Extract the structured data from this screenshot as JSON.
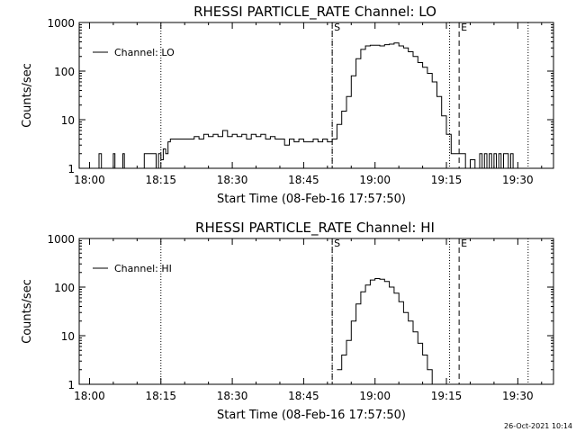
{
  "chart_data": [
    {
      "type": "line",
      "title": "RHESSI PARTICLE_RATE Channel: LO",
      "xlabel": "Start Time (08-Feb-16 17:57:50)",
      "ylabel": "Counts/sec",
      "yscale": "log",
      "xlim": [
        "17:57:50",
        "19:37:30"
      ],
      "ylim": [
        1,
        1000
      ],
      "x_ticks": [
        "18:00",
        "18:15",
        "18:30",
        "18:45",
        "19:00",
        "19:15",
        "19:30"
      ],
      "y_ticks": [
        "1",
        "10",
        "100",
        "1000"
      ],
      "legend": {
        "label": "Channel: LO",
        "position": "top-left"
      },
      "markers": [
        {
          "label": "S",
          "time": "18:51:00",
          "style": "dashed"
        },
        {
          "label": "E",
          "time": "19:17:40",
          "style": "dashed"
        }
      ],
      "dotted_lines": [
        "18:15:00",
        "18:51:00",
        "19:15:40",
        "19:32:10"
      ],
      "grid": false,
      "series": [
        {
          "name": "Channel: LO",
          "points": [
            [
              "18:00:30",
              1
            ],
            [
              "18:01:30",
              1
            ],
            [
              "18:02:00",
              2
            ],
            [
              "18:02:30",
              1
            ],
            [
              "18:04:40",
              1
            ],
            [
              "18:05:00",
              2
            ],
            [
              "18:05:20",
              1
            ],
            [
              "18:06:40",
              1
            ],
            [
              "18:07:00",
              2
            ],
            [
              "18:07:20",
              1
            ],
            [
              "18:11:00",
              1
            ],
            [
              "18:11:30",
              2
            ],
            [
              "18:13:30",
              2
            ],
            [
              "18:14:00",
              1
            ],
            [
              "18:14:30",
              2
            ],
            [
              "18:15:00",
              1.5
            ],
            [
              "18:15:30",
              2.5
            ],
            [
              "18:16:00",
              2
            ],
            [
              "18:16:30",
              3.5
            ],
            [
              "18:17:00",
              4
            ],
            [
              "18:19:00",
              4
            ],
            [
              "18:21:00",
              4
            ],
            [
              "18:22:00",
              4.5
            ],
            [
              "18:23:00",
              4
            ],
            [
              "18:24:00",
              5
            ],
            [
              "18:25:00",
              4.5
            ],
            [
              "18:26:00",
              5
            ],
            [
              "18:27:00",
              4.5
            ],
            [
              "18:28:00",
              6
            ],
            [
              "18:29:00",
              4.5
            ],
            [
              "18:30:00",
              5
            ],
            [
              "18:31:00",
              4.5
            ],
            [
              "18:32:00",
              5
            ],
            [
              "18:33:00",
              4
            ],
            [
              "18:34:00",
              5
            ],
            [
              "18:35:00",
              4.5
            ],
            [
              "18:36:00",
              5
            ],
            [
              "18:37:00",
              4
            ],
            [
              "18:38:00",
              4.5
            ],
            [
              "18:39:00",
              4
            ],
            [
              "18:40:00",
              4
            ],
            [
              "18:41:00",
              3
            ],
            [
              "18:42:00",
              4
            ],
            [
              "18:43:00",
              3.5
            ],
            [
              "18:44:00",
              4
            ],
            [
              "18:45:00",
              3.5
            ],
            [
              "18:46:00",
              3.5
            ],
            [
              "18:47:00",
              4
            ],
            [
              "18:48:00",
              3.5
            ],
            [
              "18:49:00",
              4
            ],
            [
              "18:50:00",
              3.5
            ],
            [
              "18:51:00",
              4
            ],
            [
              "18:52:00",
              8
            ],
            [
              "18:53:00",
              15
            ],
            [
              "18:54:00",
              30
            ],
            [
              "18:55:00",
              80
            ],
            [
              "18:56:00",
              180
            ],
            [
              "18:57:00",
              280
            ],
            [
              "18:58:00",
              330
            ],
            [
              "18:59:00",
              340
            ],
            [
              "19:00:00",
              340
            ],
            [
              "19:01:00",
              330
            ],
            [
              "19:02:00",
              350
            ],
            [
              "19:03:00",
              360
            ],
            [
              "19:04:00",
              380
            ],
            [
              "19:05:00",
              330
            ],
            [
              "19:06:00",
              300
            ],
            [
              "19:07:00",
              250
            ],
            [
              "19:08:00",
              200
            ],
            [
              "19:09:00",
              150
            ],
            [
              "19:10:00",
              120
            ],
            [
              "19:11:00",
              90
            ],
            [
              "19:12:00",
              60
            ],
            [
              "19:13:00",
              30
            ],
            [
              "19:14:00",
              12
            ],
            [
              "19:15:00",
              5
            ],
            [
              "19:16:00",
              2
            ],
            [
              "19:17:00",
              2
            ],
            [
              "19:18:00",
              2
            ],
            [
              "19:19:00",
              1
            ],
            [
              "19:20:00",
              1.5
            ],
            [
              "19:21:00",
              1
            ],
            [
              "19:22:00",
              2
            ],
            [
              "19:22:30",
              1
            ],
            [
              "19:23:00",
              2
            ],
            [
              "19:23:30",
              1
            ],
            [
              "19:24:00",
              2
            ],
            [
              "19:24:30",
              1
            ],
            [
              "19:25:00",
              2
            ],
            [
              "19:25:30",
              1
            ],
            [
              "19:26:00",
              2
            ],
            [
              "19:26:30",
              1
            ],
            [
              "19:27:00",
              2
            ],
            [
              "19:28:00",
              1
            ],
            [
              "19:28:30",
              2
            ],
            [
              "19:29:00",
              1
            ]
          ]
        }
      ]
    },
    {
      "type": "line",
      "title": "RHESSI PARTICLE_RATE Channel: HI",
      "xlabel": "Start Time (08-Feb-16 17:57:50)",
      "ylabel": "Counts/sec",
      "yscale": "log",
      "xlim": [
        "17:57:50",
        "19:37:30"
      ],
      "ylim": [
        1,
        1000
      ],
      "x_ticks": [
        "18:00",
        "18:15",
        "18:30",
        "18:45",
        "19:00",
        "19:15",
        "19:30"
      ],
      "y_ticks": [
        "1",
        "10",
        "100",
        "1000"
      ],
      "legend": {
        "label": "Channel: HI",
        "position": "top-left"
      },
      "markers": [
        {
          "label": "S",
          "time": "18:51:00",
          "style": "dashed"
        },
        {
          "label": "E",
          "time": "19:17:40",
          "style": "dashed"
        }
      ],
      "dotted_lines": [
        "18:15:00",
        "18:51:00",
        "19:15:40",
        "19:32:10"
      ],
      "grid": false,
      "series": [
        {
          "name": "Channel: HI",
          "points": [
            [
              "18:52:00",
              2
            ],
            [
              "18:53:00",
              4
            ],
            [
              "18:54:00",
              8
            ],
            [
              "18:55:00",
              20
            ],
            [
              "18:56:00",
              45
            ],
            [
              "18:57:00",
              80
            ],
            [
              "18:58:00",
              110
            ],
            [
              "18:59:00",
              140
            ],
            [
              "19:00:00",
              150
            ],
            [
              "19:01:00",
              145
            ],
            [
              "19:02:00",
              130
            ],
            [
              "19:03:00",
              100
            ],
            [
              "19:04:00",
              75
            ],
            [
              "19:05:00",
              50
            ],
            [
              "19:06:00",
              30
            ],
            [
              "19:07:00",
              20
            ],
            [
              "19:08:00",
              12
            ],
            [
              "19:09:00",
              7
            ],
            [
              "19:10:00",
              4
            ],
            [
              "19:11:00",
              2
            ],
            [
              "19:12:00",
              1
            ]
          ]
        }
      ]
    }
  ],
  "footer_date": "26-Oct-2021 10:14"
}
